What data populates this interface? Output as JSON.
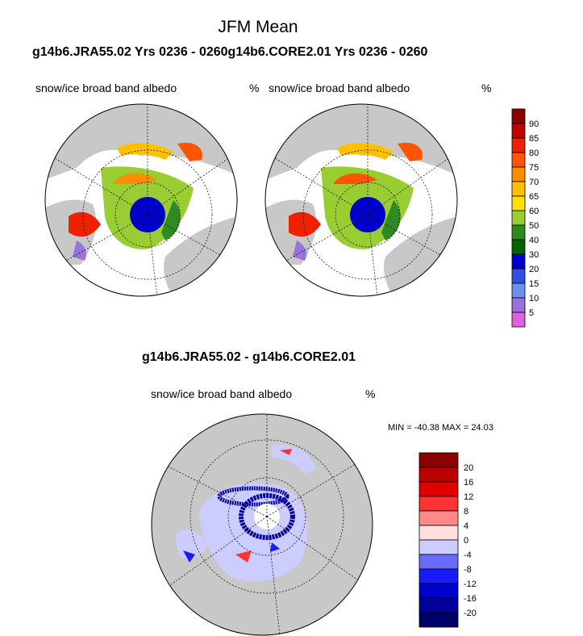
{
  "header": {
    "title": "JFM Mean"
  },
  "top_heading": "g14b6.JRA55.02  Yrs 0236 - 0260g14b6.CORE2.01  Yrs 0236 - 0260",
  "panels": {
    "left": {
      "variable": "snow/ice broad band albedo",
      "units": "%"
    },
    "right": {
      "variable": "snow/ice broad band albedo",
      "units": "%"
    },
    "diff": {
      "title": "g14b6.JRA55.02 - g14b6.CORE2.01",
      "variable": "snow/ice broad band albedo",
      "units": "%",
      "minmax": "MIN = -40.38 MAX =  24.03"
    }
  },
  "colorbar_top": {
    "labels": [
      "90",
      "85",
      "80",
      "75",
      "70",
      "65",
      "60",
      "50",
      "40",
      "30",
      "20",
      "15",
      "10",
      "5"
    ],
    "colors": [
      "#8b0000",
      "#c00000",
      "#ee2200",
      "#ff5500",
      "#ff8c00",
      "#ffc000",
      "#ffe000",
      "#9acd32",
      "#2e8b22",
      "#006400",
      "#0000cd",
      "#3050e0",
      "#6f8ff0",
      "#9a72dd",
      "#e060e0"
    ]
  },
  "colorbar_diff": {
    "labels": [
      "20",
      "16",
      "12",
      "8",
      "4",
      "0",
      "-4",
      "-8",
      "-12",
      "-16",
      "-20"
    ],
    "colors": [
      "#8b0000",
      "#bb0000",
      "#e00000",
      "#ff3333",
      "#ff8888",
      "#ffdede",
      "#ccccff",
      "#6a6aff",
      "#1a1aff",
      "#0000cc",
      "#00009b",
      "#00006a"
    ]
  },
  "map_colors": {
    "land": "#c8c8c8",
    "ocean": "#ffffff"
  }
}
